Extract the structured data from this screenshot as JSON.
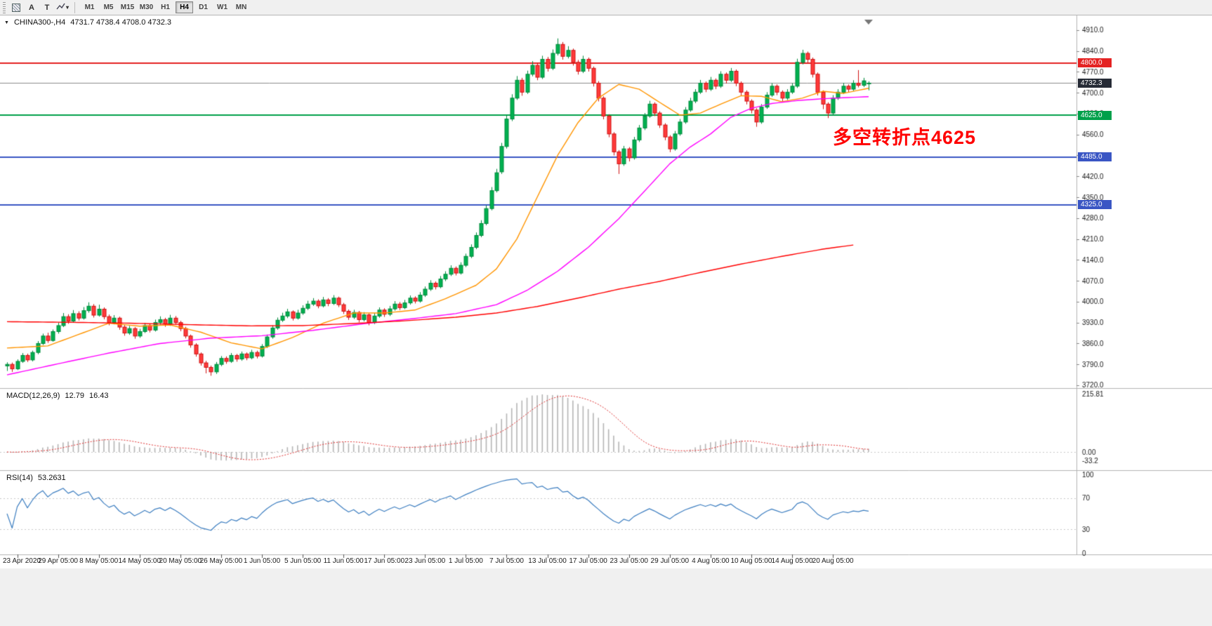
{
  "toolbar": {
    "tools": [
      {
        "label": "A"
      },
      {
        "label": "T"
      }
    ],
    "timeframes": [
      "M1",
      "M5",
      "M15",
      "M30",
      "H1",
      "H4",
      "D1",
      "W1",
      "MN"
    ],
    "active_timeframe": "H4"
  },
  "chart": {
    "title": {
      "symbol": "CHINA300-,H4",
      "ohlc": "4731.7 4738.4 4708.0 4732.3"
    },
    "annotation": {
      "text": "多空转折点4625",
      "color": "#ff0000"
    },
    "current_price": {
      "value": 4732.3,
      "label": "4732.3",
      "badge_color": "#262b36",
      "line_color": "#8c8c8c"
    },
    "levels": [
      {
        "price": 4800,
        "label": "4800.0",
        "color": "#e42222"
      },
      {
        "price": 4625,
        "label": "4625.0",
        "color": "#00a04a"
      },
      {
        "price": 4485,
        "label": "4485.0",
        "color": "#3a56c4"
      },
      {
        "price": 4325,
        "label": "4325.0",
        "color": "#3a56c4"
      }
    ],
    "y_axis": {
      "min": 3720,
      "max": 4910,
      "step": 70
    },
    "indicator_titles": {
      "macd": {
        "name": "MACD(12,26,9)",
        "main": "12.79",
        "signal": "16.43"
      },
      "rsi": {
        "name": "RSI(14)",
        "value": "53.2631"
      }
    }
  },
  "chart_data": {
    "type": "candlestick",
    "symbol": "CHINA300-",
    "period": "H4",
    "ylim": [
      3720,
      4910
    ],
    "y_step": 70,
    "x_labels": [
      "23 Apr 2020",
      "29 Apr 05:00",
      "8 May 05:00",
      "14 May 05:00",
      "20 May 05:00",
      "26 May 05:00",
      "1 Jun 05:00",
      "5 Jun 05:00",
      "11 Jun 05:00",
      "17 Jun 05:00",
      "23 Jun 05:00",
      "1 Jul 05:00",
      "7 Jul 05:00",
      "13 Jul 05:00",
      "17 Jul 05:00",
      "23 Jul 05:00",
      "29 Jul 05:00",
      "4 Aug 05:00",
      "10 Aug 05:00",
      "14 Aug 05:00",
      "20 Aug 05:00"
    ],
    "colors": {
      "up": "#00b050",
      "up_border": "#008a3c",
      "down": "#ff3a3a",
      "down_border": "#cf1313"
    },
    "candles": [
      [
        3785,
        3797,
        3768,
        3790
      ],
      [
        3790,
        3796,
        3765,
        3775
      ],
      [
        3775,
        3807,
        3771,
        3800
      ],
      [
        3800,
        3828,
        3795,
        3820
      ],
      [
        3820,
        3826,
        3798,
        3805
      ],
      [
        3805,
        3836,
        3800,
        3830
      ],
      [
        3830,
        3868,
        3824,
        3860
      ],
      [
        3860,
        3893,
        3855,
        3885
      ],
      [
        3885,
        3896,
        3862,
        3870
      ],
      [
        3870,
        3907,
        3866,
        3900
      ],
      [
        3900,
        3930,
        3893,
        3920
      ],
      [
        3920,
        3962,
        3915,
        3950
      ],
      [
        3950,
        3958,
        3926,
        3935
      ],
      [
        3935,
        3972,
        3930,
        3960
      ],
      [
        3960,
        3968,
        3937,
        3945
      ],
      [
        3945,
        3982,
        3940,
        3970
      ],
      [
        3970,
        3998,
        3963,
        3985
      ],
      [
        3985,
        3992,
        3947,
        3955
      ],
      [
        3955,
        3990,
        3950,
        3975
      ],
      [
        3975,
        3981,
        3941,
        3950
      ],
      [
        3950,
        3957,
        3921,
        3930
      ],
      [
        3930,
        3955,
        3924,
        3945
      ],
      [
        3945,
        3950,
        3906,
        3915
      ],
      [
        3915,
        3922,
        3886,
        3895
      ],
      [
        3895,
        3919,
        3889,
        3910
      ],
      [
        3910,
        3915,
        3876,
        3885
      ],
      [
        3885,
        3909,
        3879,
        3900
      ],
      [
        3900,
        3929,
        3895,
        3920
      ],
      [
        3920,
        3926,
        3897,
        3905
      ],
      [
        3905,
        3940,
        3900,
        3930
      ],
      [
        3930,
        3951,
        3923,
        3940
      ],
      [
        3940,
        3946,
        3916,
        3925
      ],
      [
        3925,
        3956,
        3919,
        3945
      ],
      [
        3945,
        3952,
        3922,
        3930
      ],
      [
        3930,
        3936,
        3901,
        3910
      ],
      [
        3910,
        3916,
        3877,
        3885
      ],
      [
        3885,
        3890,
        3846,
        3855
      ],
      [
        3855,
        3861,
        3816,
        3825
      ],
      [
        3825,
        3830,
        3786,
        3795
      ],
      [
        3795,
        3802,
        3760,
        3780
      ],
      [
        3780,
        3786,
        3752,
        3765
      ],
      [
        3765,
        3798,
        3758,
        3790
      ],
      [
        3790,
        3818,
        3784,
        3810
      ],
      [
        3810,
        3817,
        3792,
        3800
      ],
      [
        3800,
        3828,
        3795,
        3820
      ],
      [
        3820,
        3825,
        3799,
        3808
      ],
      [
        3808,
        3833,
        3802,
        3825
      ],
      [
        3825,
        3830,
        3804,
        3812
      ],
      [
        3812,
        3839,
        3807,
        3830
      ],
      [
        3830,
        3836,
        3810,
        3818
      ],
      [
        3818,
        3858,
        3813,
        3850
      ],
      [
        3850,
        3890,
        3845,
        3882
      ],
      [
        3882,
        3921,
        3876,
        3912
      ],
      [
        3912,
        3947,
        3906,
        3938
      ],
      [
        3938,
        3963,
        3932,
        3952
      ],
      [
        3952,
        3976,
        3945,
        3966
      ],
      [
        3966,
        3971,
        3937,
        3945
      ],
      [
        3945,
        3973,
        3940,
        3962
      ],
      [
        3962,
        3988,
        3956,
        3978
      ],
      [
        3978,
        4003,
        3972,
        3992
      ],
      [
        3992,
        4012,
        3986,
        4002
      ],
      [
        4002,
        4008,
        3978,
        3986
      ],
      [
        3986,
        4016,
        3981,
        4006
      ],
      [
        4006,
        4012,
        3985,
        3994
      ],
      [
        3994,
        4022,
        3989,
        4012
      ],
      [
        4012,
        4017,
        3982,
        3990
      ],
      [
        3990,
        3996,
        3959,
        3968
      ],
      [
        3968,
        3974,
        3939,
        3948
      ],
      [
        3948,
        3973,
        3942,
        3964
      ],
      [
        3964,
        3969,
        3931,
        3940
      ],
      [
        3940,
        3965,
        3934,
        3956
      ],
      [
        3956,
        3961,
        3921,
        3930
      ],
      [
        3930,
        3962,
        3925,
        3952
      ],
      [
        3952,
        3981,
        3946,
        3972
      ],
      [
        3972,
        3978,
        3949,
        3958
      ],
      [
        3958,
        3986,
        3952,
        3976
      ],
      [
        3976,
        4002,
        3970,
        3992
      ],
      [
        3992,
        3999,
        3972,
        3980
      ],
      [
        3980,
        4006,
        3975,
        3996
      ],
      [
        3996,
        4021,
        3990,
        4012
      ],
      [
        4012,
        4018,
        3994,
        4002
      ],
      [
        4002,
        4032,
        3997,
        4022
      ],
      [
        4022,
        4051,
        4016,
        4042
      ],
      [
        4042,
        4072,
        4036,
        4062
      ],
      [
        4062,
        4068,
        4041,
        4050
      ],
      [
        4050,
        4086,
        4045,
        4076
      ],
      [
        4076,
        4102,
        4069,
        4092
      ],
      [
        4092,
        4122,
        4086,
        4112
      ],
      [
        4112,
        4118,
        4088,
        4096
      ],
      [
        4096,
        4132,
        4091,
        4122
      ],
      [
        4122,
        4161,
        4116,
        4152
      ],
      [
        4152,
        4192,
        4146,
        4182
      ],
      [
        4182,
        4232,
        4176,
        4222
      ],
      [
        4222,
        4273,
        4216,
        4262
      ],
      [
        4262,
        4323,
        4256,
        4312
      ],
      [
        4312,
        4384,
        4306,
        4372
      ],
      [
        4372,
        4445,
        4366,
        4432
      ],
      [
        4435,
        4532,
        4428,
        4520
      ],
      [
        4520,
        4625,
        4513,
        4612
      ],
      [
        4612,
        4695,
        4605,
        4682
      ],
      [
        4682,
        4756,
        4676,
        4742
      ],
      [
        4742,
        4750,
        4690,
        4702
      ],
      [
        4702,
        4774,
        4696,
        4762
      ],
      [
        4762,
        4806,
        4755,
        4792
      ],
      [
        4792,
        4800,
        4742,
        4752
      ],
      [
        4752,
        4824,
        4746,
        4812
      ],
      [
        4812,
        4820,
        4771,
        4782
      ],
      [
        4782,
        4845,
        4776,
        4832
      ],
      [
        4832,
        4882,
        4825,
        4862
      ],
      [
        4862,
        4870,
        4811,
        4822
      ],
      [
        4822,
        4856,
        4815,
        4842
      ],
      [
        4842,
        4848,
        4791,
        4802
      ],
      [
        4802,
        4810,
        4761,
        4772
      ],
      [
        4772,
        4824,
        4766,
        4812
      ],
      [
        4812,
        4818,
        4771,
        4782
      ],
      [
        4782,
        4788,
        4721,
        4732
      ],
      [
        4732,
        4739,
        4671,
        4682
      ],
      [
        4682,
        4688,
        4611,
        4622
      ],
      [
        4622,
        4628,
        4551,
        4562
      ],
      [
        4562,
        4568,
        4490,
        4502
      ],
      [
        4502,
        4508,
        4428,
        4462
      ],
      [
        4462,
        4522,
        4455,
        4512
      ],
      [
        4512,
        4518,
        4470,
        4482
      ],
      [
        4482,
        4552,
        4476,
        4542
      ],
      [
        4542,
        4592,
        4535,
        4582
      ],
      [
        4582,
        4632,
        4575,
        4622
      ],
      [
        4622,
        4673,
        4616,
        4662
      ],
      [
        4662,
        4668,
        4622,
        4632
      ],
      [
        4632,
        4638,
        4582,
        4592
      ],
      [
        4592,
        4598,
        4541,
        4552
      ],
      [
        4552,
        4558,
        4501,
        4512
      ],
      [
        4512,
        4572,
        4506,
        4562
      ],
      [
        4562,
        4612,
        4556,
        4602
      ],
      [
        4602,
        4652,
        4596,
        4642
      ],
      [
        4642,
        4683,
        4636,
        4672
      ],
      [
        4672,
        4712,
        4665,
        4702
      ],
      [
        4702,
        4743,
        4696,
        4732
      ],
      [
        4732,
        4738,
        4702,
        4712
      ],
      [
        4712,
        4753,
        4706,
        4742
      ],
      [
        4742,
        4748,
        4712,
        4722
      ],
      [
        4722,
        4772,
        4716,
        4762
      ],
      [
        4762,
        4768,
        4731,
        4742
      ],
      [
        4742,
        4783,
        4736,
        4772
      ],
      [
        4772,
        4778,
        4722,
        4732
      ],
      [
        4732,
        4738,
        4691,
        4702
      ],
      [
        4702,
        4708,
        4661,
        4672
      ],
      [
        4672,
        4678,
        4631,
        4642
      ],
      [
        4642,
        4648,
        4586,
        4602
      ],
      [
        4602,
        4662,
        4596,
        4652
      ],
      [
        4652,
        4702,
        4646,
        4692
      ],
      [
        4692,
        4732,
        4686,
        4722
      ],
      [
        4722,
        4728,
        4692,
        4702
      ],
      [
        4702,
        4708,
        4672,
        4682
      ],
      [
        4682,
        4712,
        4676,
        4702
      ],
      [
        4702,
        4732,
        4696,
        4722
      ],
      [
        4722,
        4814,
        4716,
        4802
      ],
      [
        4802,
        4844,
        4795,
        4832
      ],
      [
        4832,
        4838,
        4801,
        4812
      ],
      [
        4812,
        4818,
        4751,
        4762
      ],
      [
        4762,
        4768,
        4691,
        4702
      ],
      [
        4702,
        4708,
        4645,
        4662
      ],
      [
        4662,
        4668,
        4615,
        4632
      ],
      [
        4632,
        4692,
        4626,
        4682
      ],
      [
        4682,
        4712,
        4676,
        4702
      ],
      [
        4702,
        4733,
        4696,
        4722
      ],
      [
        4722,
        4728,
        4702,
        4712
      ],
      [
        4712,
        4742,
        4706,
        4732
      ],
      [
        4732,
        4776,
        4718,
        4725
      ],
      [
        4725,
        4750,
        4719,
        4740
      ],
      [
        4731.7,
        4738.4,
        4708,
        4732.3
      ]
    ],
    "moving_averages": [
      {
        "name": "ma-fast",
        "color": "#ff9500",
        "points": [
          [
            0,
            3845
          ],
          [
            8,
            3852
          ],
          [
            14,
            3890
          ],
          [
            20,
            3928
          ],
          [
            26,
            3918
          ],
          [
            32,
            3922
          ],
          [
            38,
            3898
          ],
          [
            44,
            3862
          ],
          [
            50,
            3842
          ],
          [
            56,
            3880
          ],
          [
            62,
            3928
          ],
          [
            68,
            3962
          ],
          [
            74,
            3962
          ],
          [
            80,
            3972
          ],
          [
            86,
            4010
          ],
          [
            92,
            4055
          ],
          [
            96,
            4110
          ],
          [
            100,
            4210
          ],
          [
            104,
            4350
          ],
          [
            108,
            4490
          ],
          [
            112,
            4600
          ],
          [
            116,
            4682
          ],
          [
            120,
            4728
          ],
          [
            124,
            4712
          ],
          [
            128,
            4668
          ],
          [
            132,
            4625
          ],
          [
            136,
            4632
          ],
          [
            140,
            4662
          ],
          [
            144,
            4690
          ],
          [
            148,
            4688
          ],
          [
            152,
            4670
          ],
          [
            156,
            4682
          ],
          [
            160,
            4705
          ],
          [
            164,
            4698
          ],
          [
            169,
            4715
          ]
        ]
      },
      {
        "name": "ma-medium",
        "color": "#ff00ff",
        "points": [
          [
            0,
            3755
          ],
          [
            10,
            3792
          ],
          [
            20,
            3828
          ],
          [
            30,
            3860
          ],
          [
            40,
            3878
          ],
          [
            50,
            3886
          ],
          [
            60,
            3904
          ],
          [
            70,
            3926
          ],
          [
            80,
            3944
          ],
          [
            88,
            3960
          ],
          [
            96,
            3990
          ],
          [
            102,
            4038
          ],
          [
            108,
            4102
          ],
          [
            114,
            4182
          ],
          [
            120,
            4278
          ],
          [
            126,
            4388
          ],
          [
            130,
            4462
          ],
          [
            134,
            4518
          ],
          [
            138,
            4562
          ],
          [
            142,
            4618
          ],
          [
            146,
            4648
          ],
          [
            150,
            4664
          ],
          [
            155,
            4674
          ],
          [
            160,
            4680
          ],
          [
            165,
            4684
          ],
          [
            169,
            4687
          ]
        ]
      },
      {
        "name": "ma-slow",
        "color": "#ff0000",
        "points": [
          [
            0,
            3933
          ],
          [
            12,
            3931
          ],
          [
            24,
            3928
          ],
          [
            36,
            3923
          ],
          [
            48,
            3919
          ],
          [
            58,
            3920
          ],
          [
            68,
            3927
          ],
          [
            78,
            3936
          ],
          [
            88,
            3948
          ],
          [
            96,
            3962
          ],
          [
            104,
            3984
          ],
          [
            112,
            4012
          ],
          [
            120,
            4042
          ],
          [
            128,
            4068
          ],
          [
            136,
            4098
          ],
          [
            144,
            4126
          ],
          [
            152,
            4152
          ],
          [
            160,
            4176
          ],
          [
            166,
            4190
          ]
        ]
      }
    ],
    "indicators": [
      {
        "name": "MACD",
        "params": [
          12,
          26,
          9
        ],
        "display_values": [
          12.79,
          16.43
        ],
        "axis_labels": [
          "215.81",
          "0.00",
          "-33.2"
        ],
        "histogram_color": "#b5b5b5",
        "signal_color": "#e03030"
      },
      {
        "name": "RSI",
        "params": [
          14
        ],
        "display_value": 53.2631,
        "axis_labels": [
          "100",
          "70",
          "30",
          "0"
        ],
        "line_color": "#3e7fc1"
      }
    ]
  }
}
